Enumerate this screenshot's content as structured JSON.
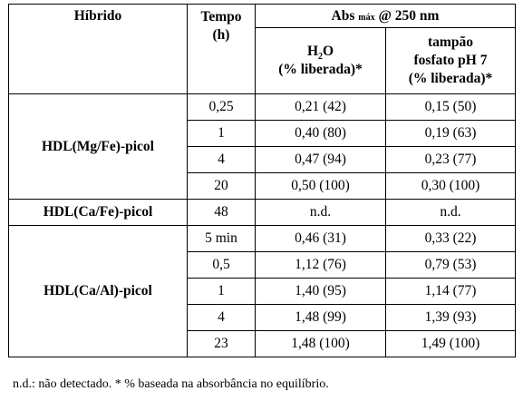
{
  "header": {
    "hybrid": "Híbrido",
    "time_l1": "Tempo",
    "time_l2": "(h)",
    "abs_prefix": "Abs",
    "abs_sub": "máx",
    "abs_suffix": "@ 250 nm",
    "h2o_main": "H",
    "h2o_sub": "2",
    "h2o_rest": "O",
    "h2o_l2": "(% liberada)*",
    "buffer_l1": "tampão",
    "buffer_l2": "fosfato pH 7",
    "buffer_l3": "(% liberada)*"
  },
  "groups": [
    {
      "name": "HDL(Mg/Fe)-picol",
      "rows": [
        {
          "time": "0,25",
          "h2o": "0,21 (42)",
          "buffer": "0,15 (50)"
        },
        {
          "time": "1",
          "h2o": "0,40 (80)",
          "buffer": "0,19 (63)"
        },
        {
          "time": "4",
          "h2o": "0,47 (94)",
          "buffer": "0,23 (77)"
        },
        {
          "time": "20",
          "h2o": "0,50 (100)",
          "buffer": "0,30 (100)"
        }
      ]
    },
    {
      "name": "HDL(Ca/Fe)-picol",
      "rows": [
        {
          "time": "48",
          "h2o": "n.d.",
          "buffer": "n.d."
        }
      ]
    },
    {
      "name": "HDL(Ca/Al)-picol",
      "rows": [
        {
          "time": "5 min",
          "h2o": "0,46 (31)",
          "buffer": "0,33 (22)"
        },
        {
          "time": "0,5",
          "h2o": "1,12 (76)",
          "buffer": "0,79 (53)"
        },
        {
          "time": "1",
          "h2o": "1,40 (95)",
          "buffer": "1,14 (77)"
        },
        {
          "time": "4",
          "h2o": "1,48 (99)",
          "buffer": "1,39 (93)"
        },
        {
          "time": "23",
          "h2o": "1,48 (100)",
          "buffer": "1,49 (100)"
        }
      ]
    }
  ],
  "footnote": "n.d.: não detectado. * % baseada na absorbância no equilíbrio."
}
